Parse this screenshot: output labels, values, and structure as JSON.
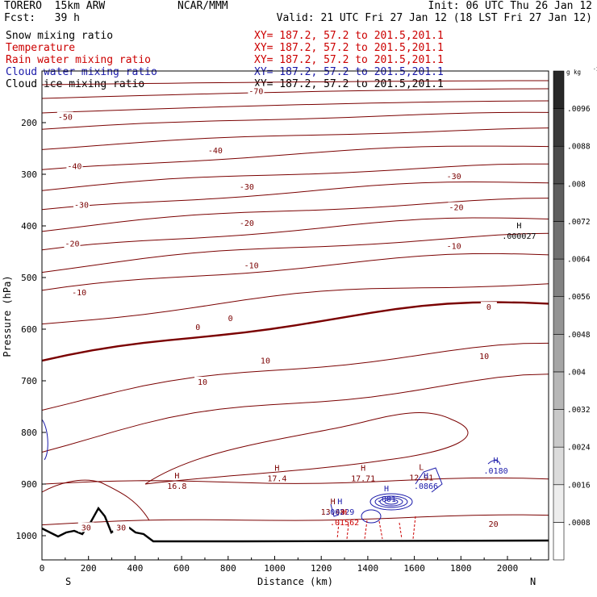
{
  "header": {
    "model": "TORERO  15km ARW",
    "center": "NCAR/MMM",
    "init": "Init: 06 UTC Thu 26 Jan 12",
    "fcst": "Fcst:   39 h",
    "valid": "Valid: 21 UTC Fri 27 Jan 12 (18 LST Fri 27 Jan 12)"
  },
  "fields": [
    {
      "name": "Snow mixing ratio",
      "xy": "XY= 187.2, 57.2 to 201.5,201.1",
      "color": "#000000",
      "xycolor": "#cc0000"
    },
    {
      "name": "Temperature",
      "xy": "XY= 187.2, 57.2 to 201.5,201.1",
      "color": "#cc0000",
      "xycolor": "#cc0000"
    },
    {
      "name": "Rain water mixing ratio",
      "xy": "XY= 187.2, 57.2 to 201.5,201.1",
      "color": "#cc0000",
      "xycolor": "#cc0000"
    },
    {
      "name": "Cloud water mixing ratio",
      "xy": "XY= 187.2, 57.2 to 201.5,201.1",
      "color": "#1a1aaa",
      "xycolor": "#1a1aaa"
    },
    {
      "name": "Cloud ice mixing ratio",
      "xy": "XY= 187.2, 57.2 to 201.5,201.1",
      "color": "#000000",
      "xycolor": "#000000"
    }
  ],
  "colors": {
    "temperature": "#7a0000",
    "rain": "#cc0000",
    "cloud_water": "#1a1aaa",
    "terrain": "#000000"
  },
  "chart_data": {
    "type": "contour",
    "xlabel": "Distance (km)",
    "ylabel": "Pressure (hPa)",
    "xlim": [
      0,
      2180
    ],
    "ylim": [
      1050,
      120
    ],
    "x_ticks": [
      0,
      200,
      400,
      600,
      800,
      1000,
      1200,
      1400,
      1600,
      1800,
      2000
    ],
    "y_ticks": [
      200,
      300,
      400,
      500,
      600,
      700,
      800,
      900,
      1000
    ],
    "endpoints": {
      "left": "S",
      "right": "N"
    },
    "colorbar": {
      "unit": "g kg",
      "unit_exp": "-1",
      "ticks": [
        ".0008",
        ".0016",
        ".0024",
        ".0032",
        ".004",
        ".0048",
        ".0056",
        ".0064",
        ".0072",
        ".008",
        ".0088",
        ".0096"
      ]
    },
    "isotherm_labels": [
      {
        "text": "-70",
        "x": 920,
        "p": 140
      },
      {
        "text": "-50",
        "x": 100,
        "p": 190
      },
      {
        "text": "-40",
        "x": 745,
        "p": 255
      },
      {
        "text": "-40",
        "x": 140,
        "p": 285
      },
      {
        "text": "-30",
        "x": 1770,
        "p": 305
      },
      {
        "text": "-30",
        "x": 880,
        "p": 325
      },
      {
        "text": "-30",
        "x": 170,
        "p": 360
      },
      {
        "text": "-20",
        "x": 1780,
        "p": 365
      },
      {
        "text": "-20",
        "x": 880,
        "p": 395
      },
      {
        "text": "-20",
        "x": 130,
        "p": 435
      },
      {
        "text": "-10",
        "x": 1770,
        "p": 440
      },
      {
        "text": "-10",
        "x": 900,
        "p": 477
      },
      {
        "text": "-10",
        "x": 160,
        "p": 530
      },
      {
        "text": "0",
        "x": 1920,
        "p": 558
      },
      {
        "text": "0",
        "x": 810,
        "p": 580
      },
      {
        "text": "0",
        "x": 670,
        "p": 597
      },
      {
        "text": "10",
        "x": 1900,
        "p": 653
      },
      {
        "text": "10",
        "x": 960,
        "p": 662
      },
      {
        "text": "10",
        "x": 690,
        "p": 703
      },
      {
        "text": "20",
        "x": 1940,
        "p": 978
      },
      {
        "text": "30",
        "x": 190,
        "p": 985
      },
      {
        "text": "30",
        "x": 340,
        "p": 985
      }
    ],
    "extrema_labels": [
      {
        "mark": "H",
        "value": "16.8",
        "x": 580,
        "p": 905,
        "color": "#7a0000"
      },
      {
        "mark": "H",
        "value": "17.4",
        "x": 1010,
        "p": 890,
        "color": "#7a0000"
      },
      {
        "mark": "H",
        "value": "17.71",
        "x": 1380,
        "p": 890,
        "color": "#7a0000"
      },
      {
        "mark": "H",
        "value": "13.48",
        "x": 1250,
        "p": 955,
        "color": "#7a0000"
      },
      {
        "mark": "L",
        "value": "12.91",
        "x": 1630,
        "p": 888,
        "color": "#7a0000"
      },
      {
        "mark": "H",
        "value": ".000027",
        "x": 2050,
        "p": 420,
        "color": "#000000"
      },
      {
        "mark": "H",
        "value": ".0180",
        "x": 1950,
        "p": 875,
        "color": "#1a1aaa"
      },
      {
        "mark": "H",
        "value": ".00229",
        "x": 1280,
        "p": 955,
        "color": "#1a1aaa"
      },
      {
        "mark": "H",
        "value": ".001",
        "x": 1480,
        "p": 930,
        "color": "#1a1aaa"
      },
      {
        "mark": "H",
        "value": ".0866",
        "x": 1650,
        "p": 905,
        "color": "#1a1aaa"
      },
      {
        "mark": "H",
        "value": ".01562",
        "x": 1300,
        "p": 975,
        "color": "#cc0000"
      }
    ]
  }
}
